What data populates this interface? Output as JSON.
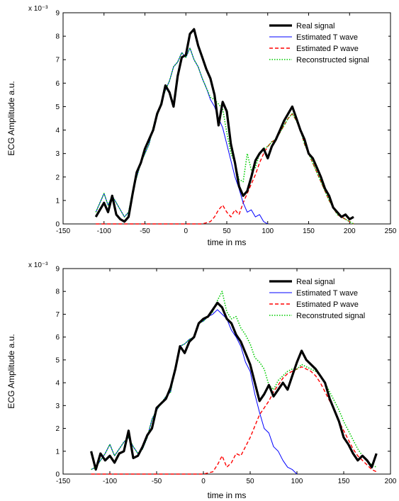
{
  "chart_data": [
    {
      "type": "line",
      "xlabel": "time in ms",
      "ylabel": "ECG Amplitude a.u.",
      "y_exponent": "x 10⁻³",
      "xlim": [
        -150,
        250
      ],
      "ylim": [
        0,
        9
      ],
      "xticks": [
        -150,
        -100,
        -50,
        0,
        50,
        100,
        150,
        200,
        250
      ],
      "yticks": [
        0,
        1,
        2,
        3,
        4,
        5,
        6,
        7,
        8,
        9
      ],
      "legend_position": "top-right",
      "series": [
        {
          "name": "Real signal",
          "color": "#000000",
          "style": "solid-thick",
          "x": [
            -110,
            -105,
            -100,
            -95,
            -90,
            -85,
            -80,
            -75,
            -70,
            -65,
            -60,
            -55,
            -50,
            -45,
            -40,
            -35,
            -30,
            -25,
            -20,
            -15,
            -10,
            -5,
            0,
            5,
            10,
            15,
            20,
            25,
            30,
            35,
            40,
            45,
            50,
            55,
            60,
            65,
            70,
            75,
            80,
            85,
            90,
            95,
            100,
            105,
            110,
            115,
            120,
            125,
            130,
            135,
            140,
            145,
            150,
            155,
            160,
            165,
            170,
            175,
            180,
            185,
            190,
            195,
            200,
            205
          ],
          "y": [
            0.3,
            0.6,
            0.9,
            0.5,
            1.2,
            0.4,
            0.2,
            0.1,
            0.3,
            1.3,
            2.2,
            2.6,
            3.2,
            3.6,
            4.0,
            4.7,
            5.1,
            5.9,
            5.6,
            5.0,
            6.3,
            7.1,
            7.2,
            8.1,
            8.3,
            7.6,
            7.1,
            6.6,
            6.2,
            5.5,
            4.2,
            5.2,
            4.8,
            3.4,
            2.6,
            1.6,
            1.2,
            1.4,
            2.0,
            2.7,
            3.0,
            3.2,
            2.8,
            3.3,
            3.6,
            4.0,
            4.4,
            4.7,
            5.0,
            4.5,
            4.0,
            3.6,
            3.0,
            2.8,
            2.4,
            2.0,
            1.5,
            1.2,
            0.7,
            0.5,
            0.3,
            0.4,
            0.2,
            0.3
          ]
        },
        {
          "name": "Estimated T wave",
          "color": "#0000ff",
          "style": "solid",
          "x": [
            -110,
            -105,
            -100,
            -95,
            -90,
            -85,
            -80,
            -75,
            -70,
            -65,
            -60,
            -55,
            -50,
            -45,
            -40,
            -35,
            -30,
            -25,
            -20,
            -15,
            -10,
            -5,
            0,
            5,
            10,
            15,
            20,
            25,
            30,
            35,
            40,
            45,
            50,
            55,
            60,
            65,
            70,
            75,
            80,
            85,
            90,
            95,
            100
          ],
          "y": [
            0.5,
            0.9,
            1.3,
            0.8,
            1.2,
            0.9,
            0.6,
            0.3,
            0.5,
            1.4,
            2.0,
            2.6,
            3.0,
            3.4,
            4.1,
            4.6,
            5.2,
            5.7,
            6.1,
            6.7,
            6.9,
            7.3,
            7.1,
            7.5,
            7.0,
            6.7,
            6.2,
            5.8,
            5.3,
            5.0,
            4.5,
            4.1,
            3.4,
            2.7,
            2.0,
            1.5,
            0.9,
            0.5,
            0.6,
            0.3,
            0.4,
            0.1,
            0.0
          ]
        },
        {
          "name": "Estimated P wave",
          "color": "#ff0000",
          "style": "dashed",
          "x": [
            -110,
            -100,
            -80,
            -60,
            -40,
            -20,
            0,
            20,
            30,
            35,
            40,
            45,
            50,
            55,
            60,
            65,
            70,
            75,
            80,
            85,
            90,
            95,
            100,
            105,
            110,
            115,
            120,
            125,
            130,
            135,
            140,
            145,
            150,
            155,
            160,
            165,
            170,
            175,
            180,
            185,
            190,
            195,
            200,
            205
          ],
          "y": [
            0.0,
            0.0,
            0.0,
            0.0,
            0.0,
            0.0,
            0.0,
            0.0,
            0.1,
            0.3,
            0.6,
            0.8,
            0.5,
            0.3,
            0.6,
            0.4,
            0.9,
            1.3,
            1.7,
            2.1,
            2.6,
            3.0,
            3.3,
            3.5,
            3.6,
            3.9,
            4.2,
            4.5,
            4.7,
            4.4,
            4.0,
            3.4,
            3.0,
            2.6,
            2.2,
            1.8,
            1.4,
            1.0,
            0.7,
            0.4,
            0.3,
            0.2,
            0.1,
            0.0
          ]
        },
        {
          "name": "Reconstructed signal",
          "color": "#00cc00",
          "style": "dotted",
          "x": [
            -110,
            -105,
            -100,
            -95,
            -90,
            -85,
            -80,
            -75,
            -70,
            -65,
            -60,
            -55,
            -50,
            -45,
            -40,
            -35,
            -30,
            -25,
            -20,
            -15,
            -10,
            -5,
            0,
            5,
            10,
            15,
            20,
            25,
            30,
            35,
            40,
            45,
            50,
            55,
            60,
            65,
            70,
            75,
            80,
            85,
            90,
            95,
            100,
            105,
            110,
            115,
            120,
            125,
            130,
            135,
            140,
            145,
            150,
            155,
            160,
            165,
            170,
            175,
            180,
            185,
            190,
            195,
            200,
            205
          ],
          "y": [
            0.5,
            0.9,
            1.3,
            0.8,
            1.2,
            0.9,
            0.6,
            0.3,
            0.5,
            1.4,
            2.0,
            2.6,
            3.0,
            3.4,
            4.1,
            4.6,
            5.2,
            5.7,
            6.1,
            6.7,
            6.9,
            7.3,
            7.1,
            7.5,
            7.0,
            6.7,
            6.2,
            5.8,
            5.4,
            5.3,
            5.1,
            4.9,
            3.9,
            3.0,
            2.6,
            1.9,
            1.8,
            3.0,
            2.3,
            2.4,
            3.0,
            3.2,
            3.3,
            3.5,
            3.6,
            3.9,
            4.2,
            4.5,
            4.7,
            4.4,
            4.0,
            3.4,
            3.0,
            2.6,
            2.2,
            1.8,
            1.4,
            1.0,
            0.7,
            0.4,
            0.3,
            0.2,
            0.1,
            0.0
          ]
        }
      ]
    },
    {
      "type": "line",
      "xlabel": "time in ms",
      "ylabel": "ECG Amplitude a.u.",
      "y_exponent": "x 10⁻³",
      "xlim": [
        -150,
        200
      ],
      "ylim": [
        0,
        9
      ],
      "xticks": [
        -150,
        -100,
        -50,
        0,
        50,
        100,
        150,
        200
      ],
      "yticks": [
        0,
        1,
        2,
        3,
        4,
        5,
        6,
        7,
        8,
        9
      ],
      "legend_position": "top-right",
      "series": [
        {
          "name": "Real signal",
          "color": "#000000",
          "style": "solid-thick",
          "x": [
            -120,
            -115,
            -110,
            -105,
            -100,
            -95,
            -90,
            -85,
            -80,
            -75,
            -70,
            -65,
            -60,
            -55,
            -50,
            -45,
            -40,
            -35,
            -30,
            -25,
            -20,
            -15,
            -10,
            -5,
            0,
            5,
            10,
            15,
            20,
            25,
            30,
            35,
            40,
            45,
            50,
            55,
            60,
            65,
            70,
            75,
            80,
            85,
            90,
            95,
            100,
            105,
            110,
            115,
            120,
            125,
            130,
            135,
            140,
            145,
            150,
            155,
            160,
            165,
            170,
            175,
            180,
            185
          ],
          "y": [
            1.0,
            0.2,
            0.9,
            0.6,
            0.8,
            0.5,
            0.9,
            1.0,
            1.9,
            0.7,
            0.8,
            1.2,
            1.7,
            2.0,
            2.9,
            3.1,
            3.3,
            3.8,
            4.6,
            5.6,
            5.3,
            5.8,
            6.0,
            6.6,
            6.8,
            6.9,
            7.2,
            7.5,
            7.3,
            6.8,
            6.6,
            6.1,
            5.8,
            5.3,
            4.8,
            4.0,
            3.2,
            3.5,
            3.9,
            3.4,
            3.7,
            4.0,
            3.7,
            4.3,
            4.9,
            5.4,
            5.0,
            4.8,
            4.6,
            4.3,
            4.0,
            3.3,
            2.8,
            2.3,
            1.6,
            1.3,
            0.9,
            0.6,
            0.8,
            0.6,
            0.3,
            0.9
          ]
        },
        {
          "name": "Estimated T wave",
          "color": "#0000ff",
          "style": "solid",
          "x": [
            -120,
            -115,
            -110,
            -105,
            -100,
            -95,
            -90,
            -85,
            -80,
            -75,
            -70,
            -65,
            -60,
            -55,
            -50,
            -45,
            -40,
            -35,
            -30,
            -25,
            -20,
            -15,
            -10,
            -5,
            0,
            5,
            10,
            15,
            20,
            25,
            30,
            35,
            40,
            45,
            50,
            55,
            60,
            65,
            70,
            75,
            80,
            85,
            90,
            95,
            100
          ],
          "y": [
            0.2,
            0.3,
            0.6,
            0.9,
            1.3,
            0.8,
            1.1,
            1.4,
            1.6,
            1.2,
            0.9,
            1.1,
            1.6,
            2.4,
            2.8,
            3.1,
            3.4,
            3.6,
            4.7,
            5.6,
            5.7,
            5.9,
            6.0,
            6.6,
            6.7,
            6.9,
            7.0,
            7.2,
            7.0,
            6.8,
            6.3,
            6.0,
            5.6,
            4.9,
            4.5,
            3.5,
            2.7,
            2.0,
            1.8,
            1.2,
            1.0,
            0.6,
            0.3,
            0.2,
            0.0
          ]
        },
        {
          "name": "Estimated P wave",
          "color": "#ff0000",
          "style": "dashed",
          "x": [
            -120,
            -100,
            -80,
            -60,
            -40,
            -20,
            0,
            10,
            15,
            20,
            25,
            30,
            35,
            40,
            45,
            50,
            55,
            60,
            65,
            70,
            75,
            80,
            85,
            90,
            95,
            100,
            105,
            110,
            115,
            120,
            125,
            130,
            135,
            140,
            145,
            150,
            155,
            160,
            165,
            170,
            175,
            180,
            185
          ],
          "y": [
            0.0,
            0.0,
            0.0,
            0.0,
            0.0,
            0.0,
            0.0,
            0.1,
            0.4,
            0.8,
            0.3,
            0.5,
            0.9,
            0.8,
            1.2,
            1.6,
            2.1,
            2.6,
            2.9,
            3.2,
            3.6,
            3.9,
            4.2,
            4.4,
            4.5,
            4.6,
            4.7,
            4.6,
            4.5,
            4.3,
            4.0,
            3.6,
            3.2,
            2.8,
            2.3,
            1.9,
            1.5,
            1.1,
            0.8,
            0.6,
            0.4,
            0.2,
            0.1
          ]
        },
        {
          "name": "Reconstruted signal",
          "color": "#00cc00",
          "style": "dotted",
          "x": [
            -120,
            -115,
            -110,
            -105,
            -100,
            -95,
            -90,
            -85,
            -80,
            -75,
            -70,
            -65,
            -60,
            -55,
            -50,
            -45,
            -40,
            -35,
            -30,
            -25,
            -20,
            -15,
            -10,
            -5,
            0,
            5,
            10,
            15,
            20,
            25,
            30,
            35,
            40,
            45,
            50,
            55,
            60,
            65,
            70,
            75,
            80,
            85,
            90,
            95,
            100,
            105,
            110,
            115,
            120,
            125,
            130,
            135,
            140,
            145,
            150,
            155,
            160,
            165,
            170,
            175,
            180,
            185
          ],
          "y": [
            0.2,
            0.3,
            0.6,
            0.9,
            1.3,
            0.8,
            1.1,
            1.4,
            1.6,
            1.2,
            0.9,
            1.1,
            1.6,
            2.4,
            2.8,
            3.1,
            3.4,
            3.6,
            4.7,
            5.6,
            5.7,
            5.9,
            6.0,
            6.6,
            6.7,
            6.9,
            7.1,
            7.6,
            8.0,
            7.1,
            6.8,
            6.9,
            6.4,
            6.1,
            5.7,
            5.1,
            4.9,
            4.6,
            3.9,
            3.7,
            4.1,
            4.3,
            4.5,
            4.6,
            4.6,
            4.8,
            4.7,
            4.6,
            4.5,
            4.3,
            4.0,
            3.6,
            3.2,
            2.8,
            2.3,
            1.9,
            1.5,
            1.1,
            0.8,
            0.6,
            0.4,
            0.3
          ]
        }
      ]
    }
  ]
}
